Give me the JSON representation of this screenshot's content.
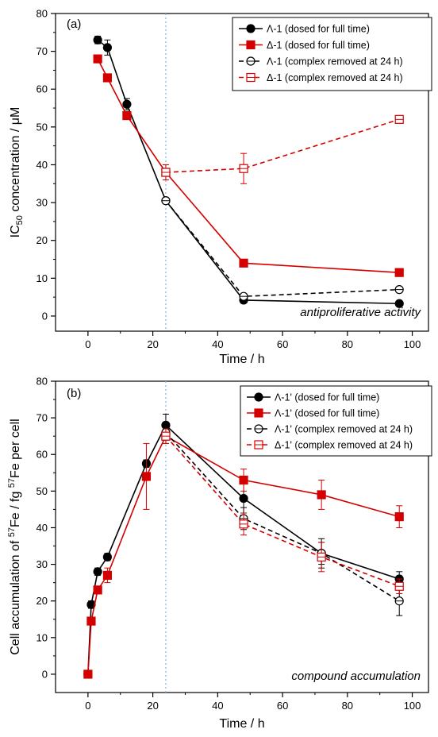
{
  "chart_data": [
    {
      "type": "line",
      "panel_label": "(a)",
      "annotation": "antiproliferative activity",
      "xlabel": "Time / h",
      "ylabel_parts": [
        "IC",
        "50",
        " concentration / μM"
      ],
      "xlim": [
        -10,
        105
      ],
      "ylim": [
        -4,
        80
      ],
      "xticks": [
        0,
        20,
        40,
        60,
        80,
        100
      ],
      "yticks": [
        0,
        10,
        20,
        30,
        40,
        50,
        60,
        70,
        80
      ],
      "vline_x": 24,
      "grid": false,
      "legend_position": "top-right",
      "series": [
        {
          "name": "Λ-1 (dosed for full time)",
          "color": "#000000",
          "marker": "circle-filled",
          "dashed": false,
          "x": [
            3,
            6,
            12,
            24,
            48,
            96
          ],
          "y": [
            73,
            71,
            56,
            30.5,
            4.2,
            3.3
          ],
          "err": [
            1,
            2,
            1.5,
            0.5,
            0.5,
            0.3
          ]
        },
        {
          "name": "Δ-1 (dosed for full time)",
          "color": "#d40000",
          "marker": "square-filled",
          "dashed": false,
          "x": [
            3,
            6,
            12,
            24,
            48,
            96
          ],
          "y": [
            68,
            63,
            53,
            38,
            14,
            11.5
          ],
          "err": [
            1,
            1,
            1,
            2,
            0.5,
            0.5
          ]
        },
        {
          "name": "Λ-1 (complex removed at 24 h)",
          "color": "#000000",
          "marker": "circle-half",
          "dashed": true,
          "x": [
            24,
            48,
            96
          ],
          "y": [
            30.5,
            5.2,
            7
          ],
          "err": [
            0.5,
            0.5,
            0.5
          ]
        },
        {
          "name": "Δ-1 (complex removed at 24 h)",
          "color": "#d40000",
          "marker": "square-half",
          "dashed": true,
          "x": [
            24,
            48,
            96
          ],
          "y": [
            38,
            39,
            52
          ],
          "err": [
            2,
            4,
            0.5
          ]
        }
      ]
    },
    {
      "type": "line",
      "panel_label": "(b)",
      "annotation": "compound accumulation",
      "xlabel": "Time / h",
      "ylabel_parts": [
        "Cell accumulation of ",
        "57",
        "Fe / fg ",
        "57",
        "Fe per cell"
      ],
      "xlim": [
        -10,
        105
      ],
      "ylim": [
        -5,
        80
      ],
      "xticks": [
        0,
        20,
        40,
        60,
        80,
        100
      ],
      "yticks": [
        0,
        10,
        20,
        30,
        40,
        50,
        60,
        70,
        80
      ],
      "vline_x": 24,
      "grid": false,
      "legend_position": "top-right",
      "series": [
        {
          "name": "Λ-1' (dosed for full time)",
          "color": "#000000",
          "marker": "circle-filled",
          "dashed": false,
          "x": [
            0,
            1,
            3,
            6,
            18,
            24,
            48,
            72,
            96
          ],
          "y": [
            0,
            19,
            28,
            32,
            57.5,
            68,
            48,
            33,
            26
          ],
          "err": [
            0,
            1,
            1,
            1,
            1,
            3,
            4,
            4,
            2
          ]
        },
        {
          "name": "Λ-1' (dosed for full time)",
          "color": "#d40000",
          "marker": "square-filled",
          "dashed": false,
          "x": [
            0,
            1,
            3,
            6,
            18,
            24,
            48,
            72,
            96
          ],
          "y": [
            0,
            14.5,
            23,
            27,
            54,
            65,
            53,
            49,
            43
          ],
          "err": [
            0,
            1,
            1,
            2,
            9,
            2,
            3,
            4,
            3
          ]
        },
        {
          "name": "Λ-1' (complex removed at 24 h)",
          "color": "#000000",
          "marker": "circle-half",
          "dashed": true,
          "x": [
            24,
            48,
            72,
            96
          ],
          "y": [
            66,
            42.5,
            33,
            20
          ],
          "err": [
            2,
            3,
            3,
            4
          ]
        },
        {
          "name": "Δ-1' (complex removed at 24 h)",
          "color": "#d40000",
          "marker": "square-half",
          "dashed": true,
          "x": [
            24,
            48,
            72,
            96
          ],
          "y": [
            65,
            41,
            32,
            24
          ],
          "err": [
            2,
            3,
            4,
            2
          ]
        }
      ]
    }
  ]
}
